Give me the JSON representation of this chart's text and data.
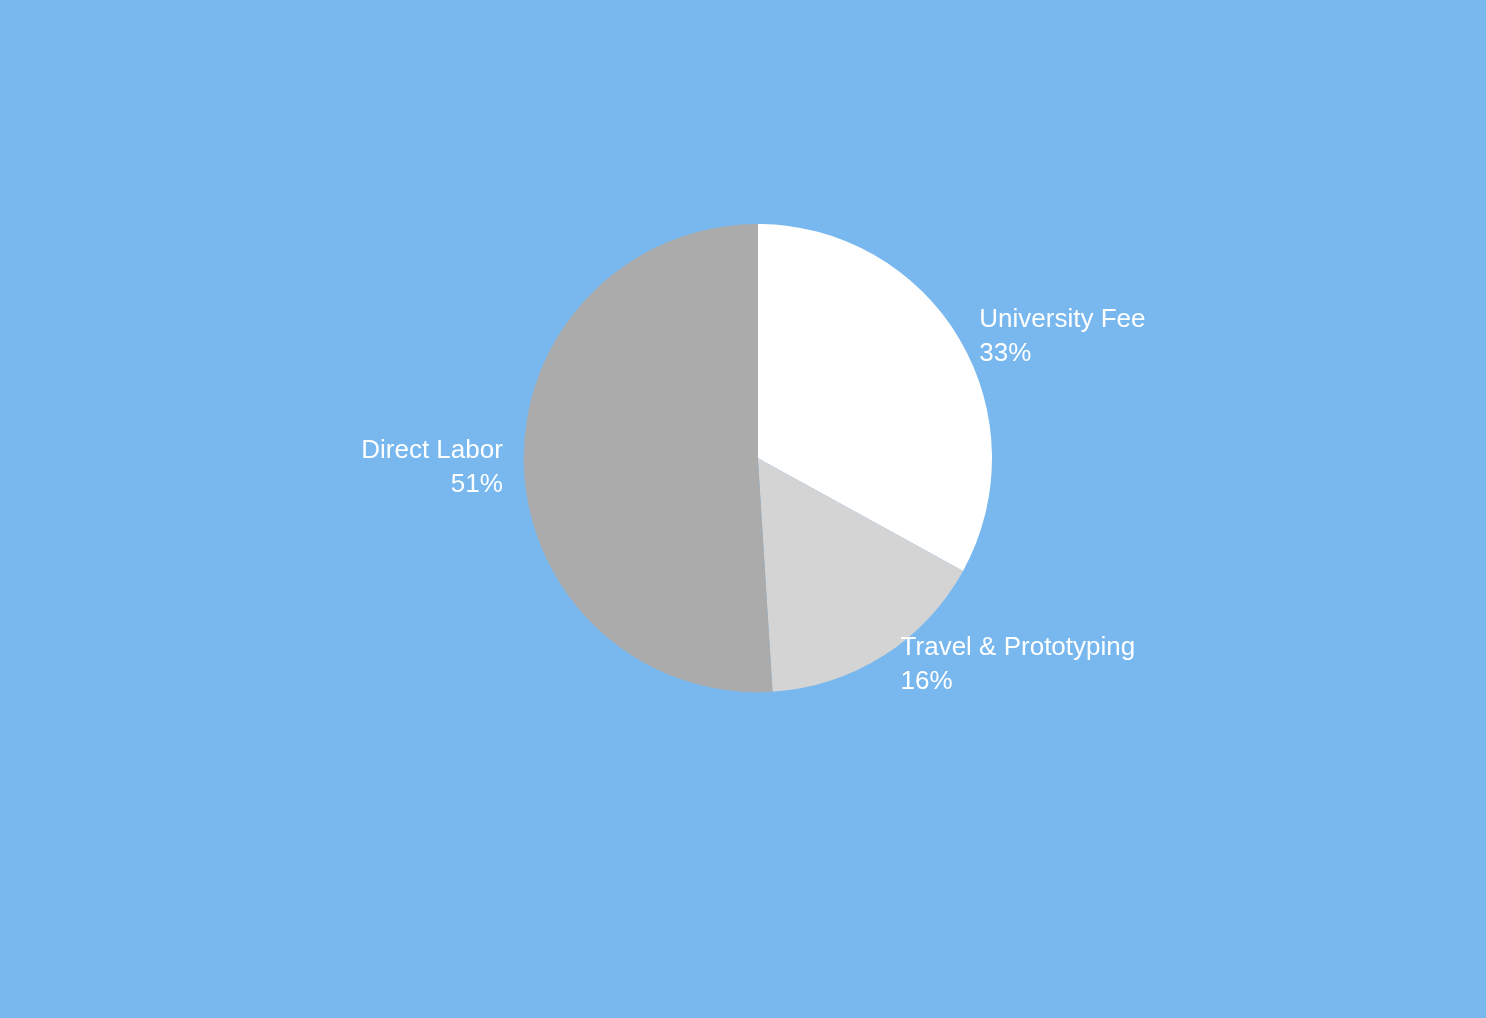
{
  "chart_data": {
    "type": "pie",
    "categories": [
      "University Fee",
      "Travel & Prototyping",
      "Direct Labor"
    ],
    "values": [
      33,
      16,
      51
    ],
    "colors": [
      "#ffffff",
      "#d4d4d4",
      "#ababab"
    ],
    "value_labels": [
      "33%",
      "16%",
      "51%"
    ],
    "legend": false
  }
}
